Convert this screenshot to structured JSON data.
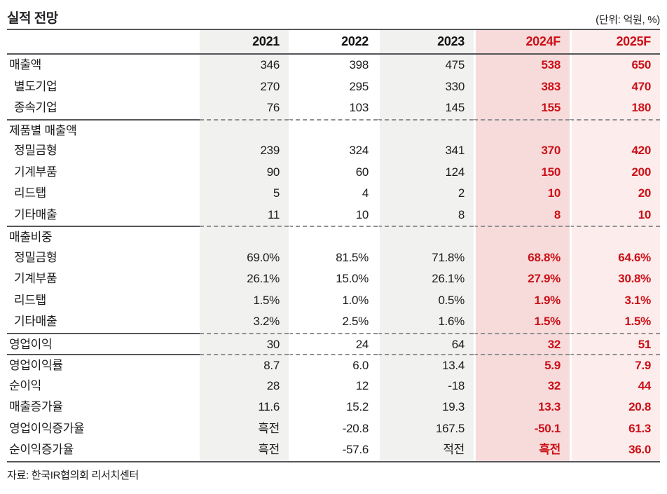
{
  "title": "실적 전망",
  "unit_note": "(단위: 억원, %)",
  "source": "자료: 한국IR협의회 리서치센터",
  "colors": {
    "accent_red": "#cb1017",
    "column_gray": "#f1f1ef",
    "column_pink_2024F": "#f7dbdb",
    "column_pink_2025F": "#fdecec",
    "rule_dark": "#55565a",
    "rule_dashed": "#909094"
  },
  "chart_data": {
    "type": "table",
    "title": "실적 전망",
    "unit": "억원, %",
    "columns": [
      "2021",
      "2022",
      "2023",
      "2024F",
      "2025F"
    ],
    "forecast_columns": [
      "2024F",
      "2025F"
    ]
  },
  "table": {
    "label_header": "",
    "columns": [
      "2021",
      "2022",
      "2023",
      "2024F",
      "2025F"
    ],
    "rows": [
      {
        "label": "매출액",
        "indent": false,
        "section": false,
        "sep_before": false,
        "values": [
          "346",
          "398",
          "475",
          "538",
          "650"
        ]
      },
      {
        "label": "별도기업",
        "indent": true,
        "section": false,
        "sep_before": false,
        "values": [
          "270",
          "295",
          "330",
          "383",
          "470"
        ]
      },
      {
        "label": "종속기업",
        "indent": true,
        "section": false,
        "sep_before": false,
        "values": [
          "76",
          "103",
          "145",
          "155",
          "180"
        ]
      },
      {
        "label": "제품별 매출액",
        "indent": false,
        "section": true,
        "sep_before": true,
        "values": [
          "",
          "",
          "",
          "",
          ""
        ]
      },
      {
        "label": "정밀금형",
        "indent": true,
        "section": false,
        "sep_before": false,
        "values": [
          "239",
          "324",
          "341",
          "370",
          "420"
        ]
      },
      {
        "label": "기계부품",
        "indent": true,
        "section": false,
        "sep_before": false,
        "values": [
          "90",
          "60",
          "124",
          "150",
          "200"
        ]
      },
      {
        "label": "리드탭",
        "indent": true,
        "section": false,
        "sep_before": false,
        "values": [
          "5",
          "4",
          "2",
          "10",
          "20"
        ]
      },
      {
        "label": "기타매출",
        "indent": true,
        "section": false,
        "sep_before": false,
        "values": [
          "11",
          "10",
          "8",
          "8",
          "10"
        ]
      },
      {
        "label": "매출비중",
        "indent": false,
        "section": true,
        "sep_before": true,
        "values": [
          "",
          "",
          "",
          "",
          ""
        ]
      },
      {
        "label": "정밀금형",
        "indent": true,
        "section": false,
        "sep_before": false,
        "values": [
          "69.0%",
          "81.5%",
          "71.8%",
          "68.8%",
          "64.6%"
        ]
      },
      {
        "label": "기계부품",
        "indent": true,
        "section": false,
        "sep_before": false,
        "values": [
          "26.1%",
          "15.0%",
          "26.1%",
          "27.9%",
          "30.8%"
        ]
      },
      {
        "label": "리드탭",
        "indent": true,
        "section": false,
        "sep_before": false,
        "values": [
          "1.5%",
          "1.0%",
          "0.5%",
          "1.9%",
          "3.1%"
        ]
      },
      {
        "label": "기타매출",
        "indent": true,
        "section": false,
        "sep_before": false,
        "values": [
          "3.2%",
          "2.5%",
          "1.6%",
          "1.5%",
          "1.5%"
        ]
      },
      {
        "label": "영업이익",
        "indent": false,
        "section": false,
        "sep_before": true,
        "values": [
          "30",
          "24",
          "64",
          "32",
          "51"
        ]
      },
      {
        "label": "영업이익률",
        "indent": false,
        "section": false,
        "sep_before": true,
        "values": [
          "8.7",
          "6.0",
          "13.4",
          "5.9",
          "7.9"
        ]
      },
      {
        "label": "순이익",
        "indent": false,
        "section": false,
        "sep_before": false,
        "values": [
          "28",
          "12",
          "-18",
          "32",
          "44"
        ]
      },
      {
        "label": "매출증가율",
        "indent": false,
        "section": false,
        "sep_before": false,
        "values": [
          "11.6",
          "15.2",
          "19.3",
          "13.3",
          "20.8"
        ]
      },
      {
        "label": "영업이익증가율",
        "indent": false,
        "section": false,
        "sep_before": false,
        "values": [
          "흑전",
          "-20.8",
          "167.5",
          "-50.1",
          "61.3"
        ]
      },
      {
        "label": "순이익증가율",
        "indent": false,
        "section": false,
        "sep_before": false,
        "values": [
          "흑전",
          "-57.6",
          "적전",
          "흑전",
          "36.0"
        ]
      }
    ]
  }
}
